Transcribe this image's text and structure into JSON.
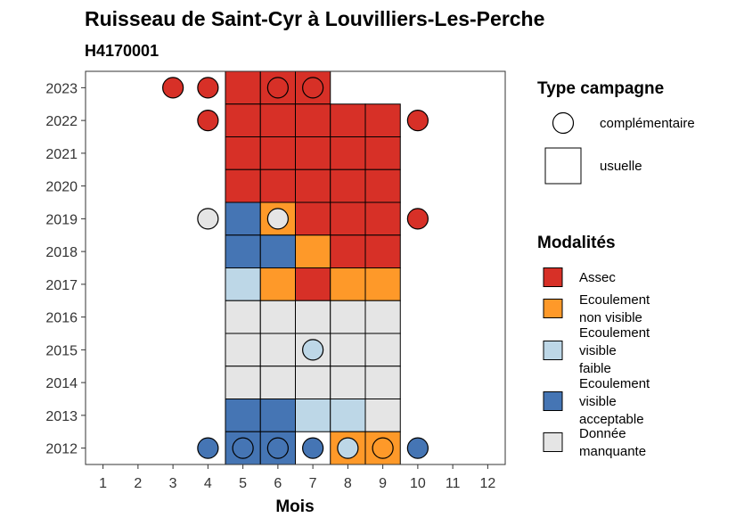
{
  "chart_data": {
    "type": "heatmap",
    "title": "Ruisseau de Saint-Cyr à Louvilliers-Les-Perche",
    "subtitle": "H4170001",
    "xlabel": "Mois",
    "ylabel": "",
    "x_ticks": [
      "1",
      "2",
      "3",
      "4",
      "5",
      "6",
      "7",
      "8",
      "9",
      "10",
      "11",
      "12"
    ],
    "y_ticks": [
      "2012",
      "2013",
      "2014",
      "2015",
      "2016",
      "2017",
      "2018",
      "2019",
      "2020",
      "2021",
      "2022",
      "2023"
    ],
    "xlim": [
      0.5,
      12.5
    ],
    "ylim": [
      2011.5,
      2023.5
    ],
    "grid": false,
    "legend_placement": "right",
    "legend_type": {
      "title": "Type campagne",
      "items": [
        {
          "shape": "circle",
          "label": "complémentaire"
        },
        {
          "shape": "square",
          "label": "usuelle"
        }
      ]
    },
    "legend_modalites": {
      "title": "Modalités",
      "items": [
        {
          "key": "assec",
          "label_lines": [
            "Assec"
          ],
          "color": "#D73027"
        },
        {
          "key": "ecnv",
          "label_lines": [
            "Ecoulement",
            "non visible"
          ],
          "color": "#FE9929"
        },
        {
          "key": "ecvf",
          "label_lines": [
            "Ecoulement",
            "visible",
            "faible"
          ],
          "color": "#BDD7E7"
        },
        {
          "key": "ecva",
          "label_lines": [
            "Ecoulement",
            "visible",
            "acceptable"
          ],
          "color": "#4575B4"
        },
        {
          "key": "dm",
          "label_lines": [
            "Donnée",
            "manquante"
          ],
          "color": "#E5E5E5"
        }
      ]
    },
    "usuelle": [
      {
        "year": 2023,
        "month": 5,
        "modalite": "assec"
      },
      {
        "year": 2023,
        "month": 6,
        "modalite": "assec"
      },
      {
        "year": 2023,
        "month": 7,
        "modalite": "assec"
      },
      {
        "year": 2022,
        "month": 5,
        "modalite": "assec"
      },
      {
        "year": 2022,
        "month": 6,
        "modalite": "assec"
      },
      {
        "year": 2022,
        "month": 7,
        "modalite": "assec"
      },
      {
        "year": 2022,
        "month": 8,
        "modalite": "assec"
      },
      {
        "year": 2022,
        "month": 9,
        "modalite": "assec"
      },
      {
        "year": 2021,
        "month": 5,
        "modalite": "assec"
      },
      {
        "year": 2021,
        "month": 6,
        "modalite": "assec"
      },
      {
        "year": 2021,
        "month": 7,
        "modalite": "assec"
      },
      {
        "year": 2021,
        "month": 8,
        "modalite": "assec"
      },
      {
        "year": 2021,
        "month": 9,
        "modalite": "assec"
      },
      {
        "year": 2020,
        "month": 5,
        "modalite": "assec"
      },
      {
        "year": 2020,
        "month": 6,
        "modalite": "assec"
      },
      {
        "year": 2020,
        "month": 7,
        "modalite": "assec"
      },
      {
        "year": 2020,
        "month": 8,
        "modalite": "assec"
      },
      {
        "year": 2020,
        "month": 9,
        "modalite": "assec"
      },
      {
        "year": 2019,
        "month": 5,
        "modalite": "ecva"
      },
      {
        "year": 2019,
        "month": 6,
        "modalite": "ecnv"
      },
      {
        "year": 2019,
        "month": 7,
        "modalite": "assec"
      },
      {
        "year": 2019,
        "month": 8,
        "modalite": "assec"
      },
      {
        "year": 2019,
        "month": 9,
        "modalite": "assec"
      },
      {
        "year": 2018,
        "month": 5,
        "modalite": "ecva"
      },
      {
        "year": 2018,
        "month": 6,
        "modalite": "ecva"
      },
      {
        "year": 2018,
        "month": 7,
        "modalite": "ecnv"
      },
      {
        "year": 2018,
        "month": 8,
        "modalite": "assec"
      },
      {
        "year": 2018,
        "month": 9,
        "modalite": "assec"
      },
      {
        "year": 2017,
        "month": 5,
        "modalite": "ecvf"
      },
      {
        "year": 2017,
        "month": 6,
        "modalite": "ecnv"
      },
      {
        "year": 2017,
        "month": 7,
        "modalite": "assec"
      },
      {
        "year": 2017,
        "month": 8,
        "modalite": "ecnv"
      },
      {
        "year": 2017,
        "month": 9,
        "modalite": "ecnv"
      },
      {
        "year": 2016,
        "month": 5,
        "modalite": "dm"
      },
      {
        "year": 2016,
        "month": 6,
        "modalite": "dm"
      },
      {
        "year": 2016,
        "month": 7,
        "modalite": "dm"
      },
      {
        "year": 2016,
        "month": 8,
        "modalite": "dm"
      },
      {
        "year": 2016,
        "month": 9,
        "modalite": "dm"
      },
      {
        "year": 2015,
        "month": 5,
        "modalite": "dm"
      },
      {
        "year": 2015,
        "month": 6,
        "modalite": "dm"
      },
      {
        "year": 2015,
        "month": 7,
        "modalite": "dm"
      },
      {
        "year": 2015,
        "month": 8,
        "modalite": "dm"
      },
      {
        "year": 2015,
        "month": 9,
        "modalite": "dm"
      },
      {
        "year": 2014,
        "month": 5,
        "modalite": "dm"
      },
      {
        "year": 2014,
        "month": 6,
        "modalite": "dm"
      },
      {
        "year": 2014,
        "month": 7,
        "modalite": "dm"
      },
      {
        "year": 2014,
        "month": 8,
        "modalite": "dm"
      },
      {
        "year": 2014,
        "month": 9,
        "modalite": "dm"
      },
      {
        "year": 2013,
        "month": 5,
        "modalite": "ecva"
      },
      {
        "year": 2013,
        "month": 6,
        "modalite": "ecva"
      },
      {
        "year": 2013,
        "month": 7,
        "modalite": "ecvf"
      },
      {
        "year": 2013,
        "month": 8,
        "modalite": "ecvf"
      },
      {
        "year": 2013,
        "month": 9,
        "modalite": "dm"
      },
      {
        "year": 2012,
        "month": 5,
        "modalite": "ecva"
      },
      {
        "year": 2012,
        "month": 6,
        "modalite": "ecva"
      },
      {
        "year": 2012,
        "month": 8,
        "modalite": "ecnv"
      },
      {
        "year": 2012,
        "month": 9,
        "modalite": "ecnv"
      }
    ],
    "complementaire": [
      {
        "year": 2023,
        "month": 3,
        "modalite": "assec"
      },
      {
        "year": 2023,
        "month": 4,
        "modalite": "assec"
      },
      {
        "year": 2023,
        "month": 6,
        "modalite": "assec"
      },
      {
        "year": 2023,
        "month": 7,
        "modalite": "assec"
      },
      {
        "year": 2022,
        "month": 4,
        "modalite": "assec"
      },
      {
        "year": 2022,
        "month": 10,
        "modalite": "assec"
      },
      {
        "year": 2019,
        "month": 4,
        "modalite": "dm"
      },
      {
        "year": 2019,
        "month": 6,
        "modalite": "dm"
      },
      {
        "year": 2019,
        "month": 10,
        "modalite": "assec"
      },
      {
        "year": 2015,
        "month": 7,
        "modalite": "ecvf"
      },
      {
        "year": 2012,
        "month": 4,
        "modalite": "ecva"
      },
      {
        "year": 2012,
        "month": 5,
        "modalite": "ecva"
      },
      {
        "year": 2012,
        "month": 6,
        "modalite": "ecva"
      },
      {
        "year": 2012,
        "month": 7,
        "modalite": "ecva"
      },
      {
        "year": 2012,
        "month": 8,
        "modalite": "ecvf"
      },
      {
        "year": 2012,
        "month": 9,
        "modalite": "ecnv"
      },
      {
        "year": 2012,
        "month": 10,
        "modalite": "ecva"
      }
    ]
  }
}
